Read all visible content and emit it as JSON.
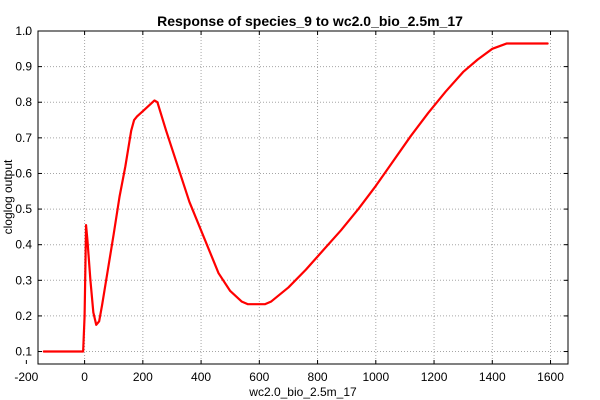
{
  "chart_data": {
    "type": "line",
    "title": "Response of species_9 to wc2.0_bio_2.5m_17",
    "xlabel": "wc2.0_bio_2.5m_17",
    "ylabel": "cloglog output",
    "xlim": [
      -160,
      1660
    ],
    "ylim": [
      0.065,
      1.0
    ],
    "x_ticks": [
      -200,
      0,
      200,
      400,
      600,
      800,
      1000,
      1200,
      1400,
      1600
    ],
    "y_ticks": [
      0.1,
      0.2,
      0.3,
      0.4,
      0.5,
      0.6,
      0.7,
      0.8,
      0.9,
      1.0
    ],
    "x_tick_labels": [
      "-200",
      "0",
      "200",
      "400",
      "600",
      "800",
      "1000",
      "1200",
      "1400",
      "1600"
    ],
    "y_tick_labels": [
      "0.1",
      "0.2",
      "0.3",
      "0.4",
      "0.5",
      "0.6",
      "0.7",
      "0.8",
      "0.9",
      "1.0"
    ],
    "grid": true,
    "color": "#ff0000",
    "series": [
      {
        "x": [
          -140,
          -5,
          0,
          2,
          5,
          10,
          20,
          30,
          40,
          50,
          60,
          80,
          100,
          120,
          140,
          150,
          160,
          170,
          180,
          200,
          220,
          240,
          250,
          280,
          320,
          360,
          400,
          440,
          460,
          500,
          540,
          560,
          600,
          620,
          640,
          700,
          760,
          820,
          880,
          940,
          1000,
          1060,
          1120,
          1180,
          1240,
          1300,
          1350,
          1400,
          1450,
          1590
        ],
        "y": [
          0.1,
          0.1,
          0.2,
          0.3,
          0.455,
          0.41,
          0.3,
          0.21,
          0.175,
          0.185,
          0.23,
          0.33,
          0.43,
          0.535,
          0.62,
          0.67,
          0.72,
          0.75,
          0.76,
          0.775,
          0.79,
          0.805,
          0.8,
          0.72,
          0.62,
          0.52,
          0.44,
          0.36,
          0.32,
          0.27,
          0.24,
          0.233,
          0.233,
          0.233,
          0.24,
          0.28,
          0.33,
          0.385,
          0.44,
          0.5,
          0.565,
          0.635,
          0.705,
          0.77,
          0.83,
          0.885,
          0.92,
          0.95,
          0.965,
          0.965
        ]
      }
    ]
  }
}
